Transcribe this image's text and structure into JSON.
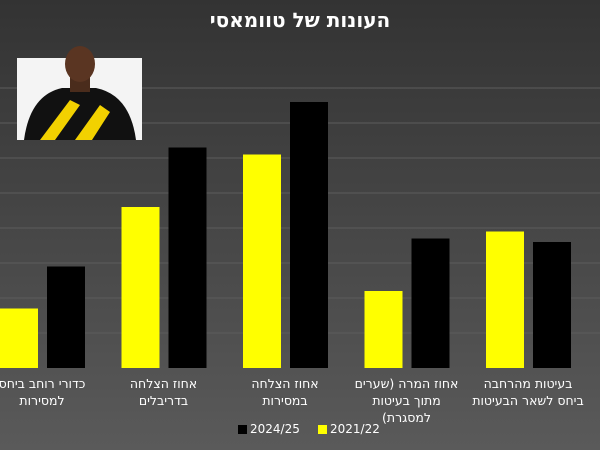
{
  "chart_data": {
    "type": "bar",
    "title": "העונות של טוומאסי",
    "categories": [
      "בעיטות מהרחבה ביחס לשאר הבעיטות",
      "אחוז המרה (שערים מתוך בעיטות למסגרת)",
      "אחוז הצלחה במסירות",
      "אחוז הצלחה בדריבלים",
      "כדורי רוחב ביחס למסירות"
    ],
    "series": [
      {
        "name": "2021/22",
        "color": "#ffff00",
        "values": [
          39,
          22,
          61,
          46,
          17
        ]
      },
      {
        "name": "2024/25",
        "color": "#000000",
        "values": [
          36,
          37,
          76,
          63,
          29
        ]
      }
    ],
    "ylim": [
      0,
      90
    ],
    "grid": true
  }
}
